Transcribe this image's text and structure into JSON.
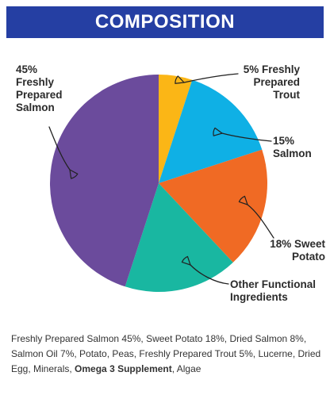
{
  "header": {
    "title": "COMPOSITION"
  },
  "chart_data": {
    "type": "pie",
    "slices": [
      {
        "label": "5% Freshly Prepared Trout",
        "value": 5,
        "color": "#fbb616"
      },
      {
        "label": "15% Salmon",
        "value": 15,
        "color": "#0fb0e5"
      },
      {
        "label": "18% Sweet Potato",
        "value": 18,
        "color": "#f06a24"
      },
      {
        "label": "Other Functional Ingredients",
        "value": 17,
        "color": "#19b7a1"
      },
      {
        "label": "45% Freshly Prepared Salmon",
        "value": 45,
        "color": "#6b4b9c"
      }
    ]
  },
  "labels": {
    "trout": [
      "5% Freshly",
      "Prepared",
      "Trout"
    ],
    "salmon": [
      "15%",
      "Salmon"
    ],
    "sweet_potato": [
      "18% Sweet",
      "Potato"
    ],
    "other": [
      "Other Functional",
      "Ingredients"
    ],
    "fresh_salmon": [
      "45%",
      "Freshly",
      "Prepared",
      "Salmon"
    ]
  },
  "ingredients": {
    "before": "Freshly Prepared Salmon 45%, Sweet Potato 18%, Dried Salmon 8%, Salmon Oil 7%, Potato, Peas, Freshly Prepared Trout 5%, Lucerne, Dried Egg, Minerals, ",
    "bold": "Omega 3 Supplement",
    "after": ", Algae"
  }
}
